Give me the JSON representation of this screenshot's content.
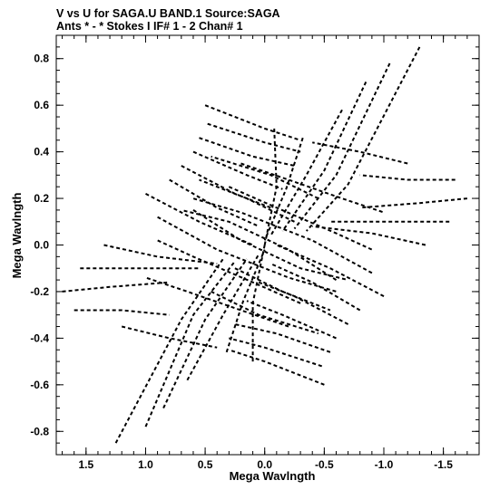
{
  "header": {
    "line1": "V vs U for SAGA.U BAND.1   Source:SAGA",
    "line2": "Ants * - *     Stokes I  IF# 1 - 2  Chan# 1"
  },
  "chart_data": {
    "type": "scatter",
    "title": "V vs U for SAGA.U BAND.1   Source:SAGA",
    "subtitle": "Ants * - *     Stokes I  IF# 1 - 2  Chan# 1",
    "xlabel": "Mega Wavlngth",
    "ylabel": "Mega Wavlngth",
    "xlim": [
      1.75,
      -1.8
    ],
    "ylim": [
      -0.9,
      0.9
    ],
    "x_ticks": [
      1.5,
      1.0,
      0.5,
      0.0,
      -0.5,
      -1.0,
      -1.5
    ],
    "x_tick_labels": [
      "1.5",
      "1.0",
      "0.5",
      "0.0",
      "-0.5",
      "-1.0",
      "-1.5"
    ],
    "y_ticks": [
      0.8,
      0.6,
      0.4,
      0.2,
      0.0,
      -0.2,
      -0.4,
      -0.6,
      -0.8
    ],
    "y_tick_labels": [
      "0.8",
      "0.6",
      "0.4",
      "0.2",
      "0.0",
      "-0.2",
      "-0.4",
      "-0.6",
      "-0.8"
    ],
    "grid": false,
    "marker": "dashed uv tracks",
    "color": "#000000",
    "tracks": [
      [
        [
          -1.3,
          0.85
        ],
        [
          -0.7,
          0.26
        ],
        [
          -0.35,
          0.06
        ]
      ],
      [
        [
          1.25,
          -0.85
        ],
        [
          0.7,
          -0.32
        ],
        [
          0.35,
          -0.06
        ]
      ],
      [
        [
          -1.05,
          0.78
        ],
        [
          -0.6,
          0.3
        ],
        [
          -0.25,
          0.07
        ]
      ],
      [
        [
          1.0,
          -0.78
        ],
        [
          0.6,
          -0.3
        ],
        [
          0.25,
          -0.07
        ]
      ],
      [
        [
          -0.85,
          0.7
        ],
        [
          -0.5,
          0.32
        ],
        [
          -0.15,
          0.06
        ]
      ],
      [
        [
          0.85,
          -0.7
        ],
        [
          0.5,
          -0.32
        ],
        [
          0.15,
          -0.06
        ]
      ],
      [
        [
          -0.65,
          0.58
        ],
        [
          -0.35,
          0.3
        ],
        [
          -0.05,
          0.04
        ]
      ],
      [
        [
          0.65,
          -0.58
        ],
        [
          0.35,
          -0.3
        ],
        [
          0.05,
          -0.04
        ]
      ],
      [
        [
          -0.32,
          0.46
        ],
        [
          -0.18,
          0.24
        ],
        [
          0.0,
          0.02
        ]
      ],
      [
        [
          0.32,
          -0.46
        ],
        [
          0.18,
          -0.24
        ],
        [
          0.0,
          -0.02
        ]
      ],
      [
        [
          -0.08,
          0.5
        ],
        [
          -0.1,
          0.25
        ],
        [
          0.0,
          0.0
        ]
      ],
      [
        [
          0.1,
          -0.5
        ],
        [
          0.1,
          -0.25
        ],
        [
          0.0,
          0.0
        ]
      ],
      [
        [
          0.5,
          0.6
        ],
        [
          0.0,
          0.5
        ],
        [
          -0.3,
          0.45
        ]
      ],
      [
        [
          -0.5,
          -0.6
        ],
        [
          0.0,
          -0.5
        ],
        [
          0.3,
          -0.45
        ]
      ],
      [
        [
          0.48,
          0.52
        ],
        [
          0.0,
          0.44
        ],
        [
          -0.3,
          0.4
        ]
      ],
      [
        [
          -0.48,
          -0.52
        ],
        [
          0.0,
          -0.44
        ],
        [
          0.3,
          -0.4
        ]
      ],
      [
        [
          0.55,
          0.46
        ],
        [
          0.1,
          0.38
        ],
        [
          -0.25,
          0.34
        ]
      ],
      [
        [
          -0.55,
          -0.46
        ],
        [
          -0.1,
          -0.38
        ],
        [
          0.25,
          -0.34
        ]
      ],
      [
        [
          0.6,
          0.4
        ],
        [
          0.15,
          0.3
        ],
        [
          -0.15,
          0.24
        ]
      ],
      [
        [
          -0.6,
          -0.4
        ],
        [
          -0.15,
          -0.3
        ],
        [
          0.15,
          -0.24
        ]
      ],
      [
        [
          0.7,
          0.34
        ],
        [
          0.25,
          0.22
        ],
        [
          -0.05,
          0.16
        ]
      ],
      [
        [
          -0.7,
          -0.34
        ],
        [
          -0.25,
          -0.22
        ],
        [
          0.05,
          -0.16
        ]
      ],
      [
        [
          0.8,
          0.28
        ],
        [
          0.4,
          0.16
        ],
        [
          0.05,
          0.08
        ]
      ],
      [
        [
          -0.8,
          -0.28
        ],
        [
          -0.4,
          -0.16
        ],
        [
          -0.05,
          -0.08
        ]
      ],
      [
        [
          1.0,
          0.22
        ],
        [
          0.55,
          0.1
        ],
        [
          0.1,
          0.0
        ]
      ],
      [
        [
          -1.0,
          -0.22
        ],
        [
          -0.55,
          -0.1
        ],
        [
          -0.1,
          0.0
        ]
      ],
      [
        [
          1.35,
          0.0
        ],
        [
          0.9,
          -0.05
        ],
        [
          0.4,
          -0.08
        ]
      ],
      [
        [
          -1.35,
          0.0
        ],
        [
          -0.9,
          0.05
        ],
        [
          -0.4,
          0.08
        ]
      ],
      [
        [
          1.55,
          -0.1
        ],
        [
          1.05,
          -0.1
        ],
        [
          0.55,
          -0.1
        ]
      ],
      [
        [
          -1.55,
          0.1
        ],
        [
          -1.05,
          0.1
        ],
        [
          -0.55,
          0.1
        ]
      ],
      [
        [
          1.7,
          -0.2
        ],
        [
          1.3,
          -0.18
        ],
        [
          0.8,
          -0.16
        ]
      ],
      [
        [
          -1.7,
          0.2
        ],
        [
          -1.3,
          0.18
        ],
        [
          -0.8,
          0.16
        ]
      ],
      [
        [
          1.6,
          -0.28
        ],
        [
          1.2,
          -0.28
        ],
        [
          0.8,
          -0.3
        ]
      ],
      [
        [
          -1.6,
          0.28
        ],
        [
          -1.2,
          0.28
        ],
        [
          -0.8,
          0.3
        ]
      ],
      [
        [
          0.6,
          0.15
        ],
        [
          0.2,
          0.02
        ],
        [
          -0.3,
          -0.1
        ],
        [
          -0.7,
          -0.15
        ]
      ],
      [
        [
          -0.6,
          -0.15
        ],
        [
          -0.2,
          -0.02
        ],
        [
          0.3,
          0.1
        ],
        [
          0.7,
          0.15
        ]
      ],
      [
        [
          0.9,
          0.12
        ],
        [
          0.4,
          -0.02
        ],
        [
          -0.2,
          -0.14
        ],
        [
          -0.6,
          -0.2
        ]
      ],
      [
        [
          -0.9,
          -0.12
        ],
        [
          -0.4,
          0.02
        ],
        [
          0.2,
          0.14
        ],
        [
          0.6,
          0.2
        ]
      ],
      [
        [
          0.3,
          0.25
        ],
        [
          -0.1,
          0.16
        ],
        [
          -0.6,
          0.05
        ],
        [
          -0.9,
          -0.02
        ]
      ],
      [
        [
          -0.3,
          -0.25
        ],
        [
          0.1,
          -0.16
        ],
        [
          0.6,
          -0.05
        ],
        [
          0.9,
          0.02
        ]
      ],
      [
        [
          0.2,
          0.35
        ],
        [
          -0.2,
          0.28
        ],
        [
          -0.65,
          0.2
        ],
        [
          -1.0,
          0.14
        ]
      ],
      [
        [
          -0.2,
          -0.35
        ],
        [
          0.2,
          -0.28
        ],
        [
          0.65,
          -0.2
        ],
        [
          1.0,
          -0.14
        ]
      ],
      [
        [
          0.25,
          -0.1
        ],
        [
          -0.15,
          -0.2
        ],
        [
          -0.55,
          -0.28
        ]
      ],
      [
        [
          -0.25,
          0.1
        ],
        [
          0.15,
          0.2
        ],
        [
          0.55,
          0.28
        ]
      ],
      [
        [
          0.45,
          -0.2
        ],
        [
          0.05,
          -0.3
        ],
        [
          -0.45,
          -0.38
        ]
      ],
      [
        [
          -0.45,
          0.2
        ],
        [
          -0.05,
          0.3
        ],
        [
          0.45,
          0.38
        ]
      ],
      [
        [
          1.2,
          -0.35
        ],
        [
          0.8,
          -0.4
        ],
        [
          0.4,
          -0.44
        ]
      ],
      [
        [
          -1.2,
          0.35
        ],
        [
          -0.8,
          0.4
        ],
        [
          -0.4,
          0.44
        ]
      ]
    ]
  }
}
